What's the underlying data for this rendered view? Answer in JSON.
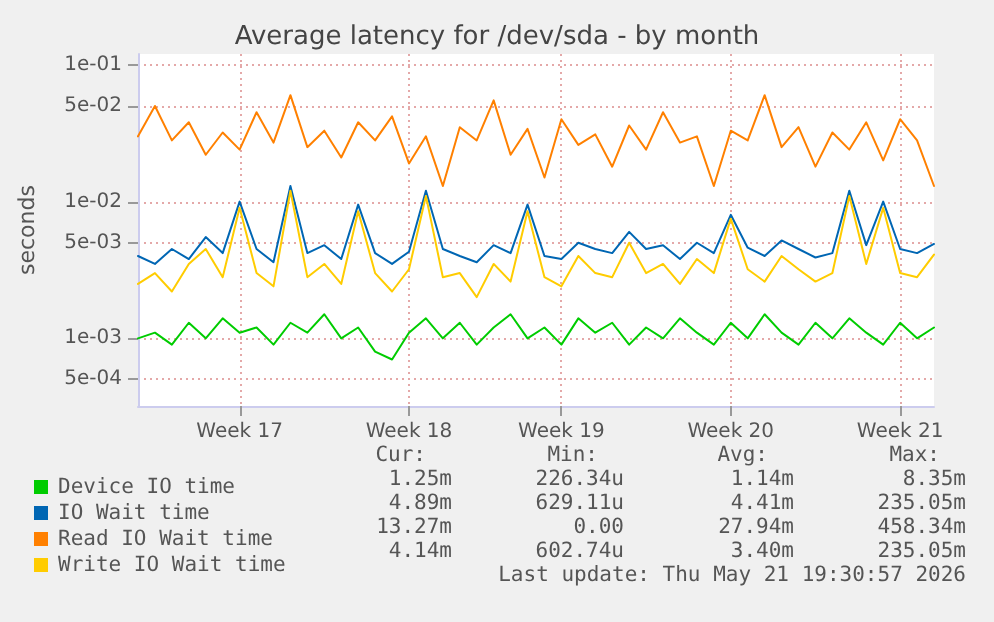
{
  "chart_data": {
    "type": "line",
    "title": "Average latency for /dev/sda - by month",
    "ylabel": "seconds",
    "log": "y",
    "grid": true,
    "legend": "bottom left",
    "marker": "none",
    "line_style": "solid",
    "categories": [
      null,
      null,
      null,
      null,
      null,
      null,
      "Week 17",
      null,
      null,
      null,
      null,
      null,
      null,
      null,
      null,
      null,
      "Week 18",
      null,
      null,
      null,
      null,
      null,
      null,
      null,
      null,
      "Week 19",
      null,
      null,
      null,
      null,
      null,
      null,
      null,
      null,
      null,
      "Week 20",
      null,
      null,
      null,
      null,
      null,
      null,
      null,
      null,
      null,
      "Week 21",
      null,
      null
    ],
    "ylim": [
      0.00032,
      0.12
    ],
    "yticks": [
      {
        "value": 0.0005,
        "label": "5e-04"
      },
      {
        "value": 0.001,
        "label": "1e-03"
      },
      {
        "value": 0.005,
        "label": "5e-03"
      },
      {
        "value": 0.01,
        "label": "1e-02"
      },
      {
        "value": 0.05,
        "label": "5e-02"
      },
      {
        "value": 0.1,
        "label": "1e-01"
      }
    ],
    "series": [
      {
        "name": "Device IO time",
        "color": "#00cc00",
        "values": [
          0.001,
          0.0011,
          0.0009,
          0.0013,
          0.001,
          0.0014,
          0.0011,
          0.0012,
          0.0009,
          0.0013,
          0.0011,
          0.0015,
          0.001,
          0.0012,
          0.0008,
          0.0007,
          0.0011,
          0.0014,
          0.001,
          0.0013,
          0.0009,
          0.0012,
          0.0015,
          0.001,
          0.0012,
          0.0009,
          0.0014,
          0.0011,
          0.0013,
          0.0009,
          0.0012,
          0.001,
          0.0014,
          0.0011,
          0.0009,
          0.0013,
          0.001,
          0.0015,
          0.0011,
          0.0009,
          0.0013,
          0.001,
          0.0014,
          0.0011,
          0.0009,
          0.0013,
          0.001,
          0.0012
        ]
      },
      {
        "name": "IO Wait time",
        "color": "#0066b3",
        "values": [
          0.004,
          0.0035,
          0.0045,
          0.0038,
          0.0055,
          0.0042,
          0.01,
          0.0045,
          0.0036,
          0.013,
          0.0042,
          0.0048,
          0.0038,
          0.0095,
          0.0042,
          0.0035,
          0.0043,
          0.012,
          0.0045,
          0.004,
          0.0036,
          0.0048,
          0.0042,
          0.0095,
          0.004,
          0.0038,
          0.005,
          0.0045,
          0.0042,
          0.006,
          0.0045,
          0.0048,
          0.0038,
          0.005,
          0.0042,
          0.008,
          0.0046,
          0.004,
          0.0052,
          0.0045,
          0.0039,
          0.0042,
          0.012,
          0.0048,
          0.01,
          0.0045,
          0.0042,
          0.0049
        ]
      },
      {
        "name": "Read IO Wait time",
        "color": "#ff8000",
        "values": [
          0.03,
          0.05,
          0.028,
          0.038,
          0.022,
          0.032,
          0.024,
          0.045,
          0.027,
          0.06,
          0.025,
          0.033,
          0.021,
          0.038,
          0.028,
          0.042,
          0.019,
          0.03,
          0.013,
          0.035,
          0.028,
          0.055,
          0.022,
          0.034,
          0.015,
          0.04,
          0.026,
          0.031,
          0.018,
          0.036,
          0.024,
          0.045,
          0.027,
          0.03,
          0.013,
          0.033,
          0.028,
          0.06,
          0.025,
          0.035,
          0.018,
          0.032,
          0.024,
          0.038,
          0.02,
          0.04,
          0.028,
          0.013
        ]
      },
      {
        "name": "Write IO Wait time",
        "color": "#ffcc00",
        "values": [
          0.0025,
          0.003,
          0.0022,
          0.0035,
          0.0045,
          0.0028,
          0.009,
          0.003,
          0.0024,
          0.012,
          0.0028,
          0.0035,
          0.0025,
          0.0085,
          0.003,
          0.0022,
          0.0032,
          0.011,
          0.0028,
          0.003,
          0.002,
          0.0035,
          0.0026,
          0.0085,
          0.0028,
          0.0024,
          0.004,
          0.003,
          0.0028,
          0.005,
          0.003,
          0.0035,
          0.0025,
          0.0038,
          0.003,
          0.0075,
          0.0032,
          0.0026,
          0.004,
          0.0032,
          0.0026,
          0.003,
          0.011,
          0.0035,
          0.009,
          0.003,
          0.0028,
          0.0041
        ]
      }
    ],
    "annotations": [
      "Cur:",
      "Min:",
      "Avg:",
      "Max:",
      "1.25m",
      "226.34u",
      "1.14m",
      "8.35m",
      "4.89m",
      "629.11u",
      "4.41m",
      "235.05m",
      "13.27m",
      "0.00",
      "27.94m",
      "458.34m",
      "4.14m",
      "602.74u",
      "3.40m",
      "235.05m",
      "Last update: Thu May 21 19:30:57 2026"
    ]
  }
}
